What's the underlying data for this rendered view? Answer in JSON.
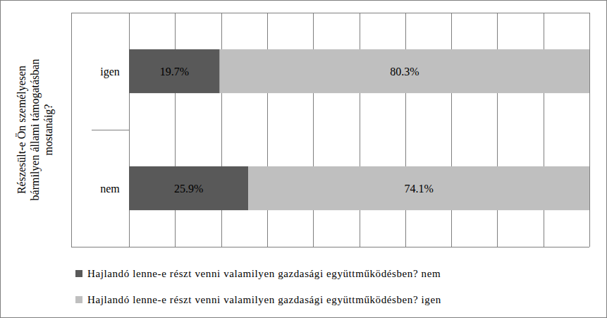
{
  "chart_data": {
    "type": "bar",
    "orientation": "horizontal",
    "stacked": true,
    "ylabel": "Részesült-e Ön személyesen bármilyen állami támogatásban mostanáig?",
    "categories": [
      "igen",
      "nem"
    ],
    "series": [
      {
        "name": "Hajlandó lenne-e részt venni valamilyen gazdasági együttműködésben? nem",
        "color": "#595959",
        "values": [
          19.7,
          25.9
        ],
        "value_labels": [
          "19.7%",
          "25.9%"
        ]
      },
      {
        "name": "Hajlandó lenne-e részt venni valamilyen gazdasági együttműködésben? igen",
        "color": "#bfbfbf",
        "values": [
          80.3,
          74.1
        ],
        "value_labels": [
          "80.3%",
          "74.1%"
        ]
      }
    ],
    "xlim": [
      0,
      100
    ],
    "xticks": [
      0,
      10,
      20,
      30,
      40,
      50,
      60,
      70,
      80,
      90,
      100
    ],
    "grid": true,
    "data_labels": true,
    "tick_labels": false,
    "legend": "bottom"
  }
}
